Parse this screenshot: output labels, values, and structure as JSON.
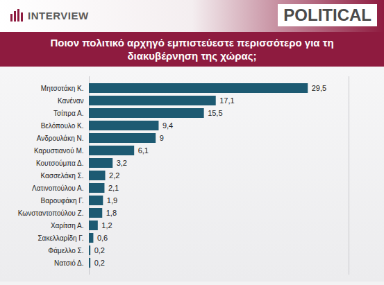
{
  "header": {
    "logo": "INTERVIEW",
    "brand": "POLITICAL"
  },
  "chart_data": {
    "type": "bar",
    "orientation": "horizontal",
    "title": "Ποιον πολιτικό αρχηγό εμπιστεύεστε περισσότερο για τη διακυβέρνηση της χώρας;",
    "categories": [
      "Μητσοτάκη Κ.",
      "Κανέναν",
      "Τσίπρα Α.",
      "Βελόπουλο Κ.",
      "Ανδρουλάκη Ν.",
      "Καρυστιανού Μ.",
      "Κουτσούμπα Δ.",
      "Κασσελάκη Σ.",
      "Λατινοπούλου Α.",
      "Βαρουφάκη Γ.",
      "Κωνσταντοπούλου Ζ.",
      "Χαρίτση Α.",
      "Σακελλαρίδη Γ.",
      "Φάμελλο Σ.",
      "Νατσιό Δ."
    ],
    "values": [
      29.5,
      17.1,
      15.5,
      9.4,
      9,
      6.1,
      3.2,
      2.2,
      2.1,
      1.9,
      1.8,
      1.2,
      0.6,
      0.2,
      0.2
    ],
    "value_labels": [
      "29,5",
      "17,1",
      "15,5",
      "9,4",
      "9",
      "6,1",
      "3,2",
      "2,2",
      "2,1",
      "1,9",
      "1,8",
      "1,2",
      "0,6",
      "0,2",
      "0,2"
    ],
    "color": "#1d5a72",
    "xlim": [
      0,
      35
    ],
    "xticks": [],
    "grid": false,
    "data_labels": true,
    "tick_labels": "y"
  }
}
